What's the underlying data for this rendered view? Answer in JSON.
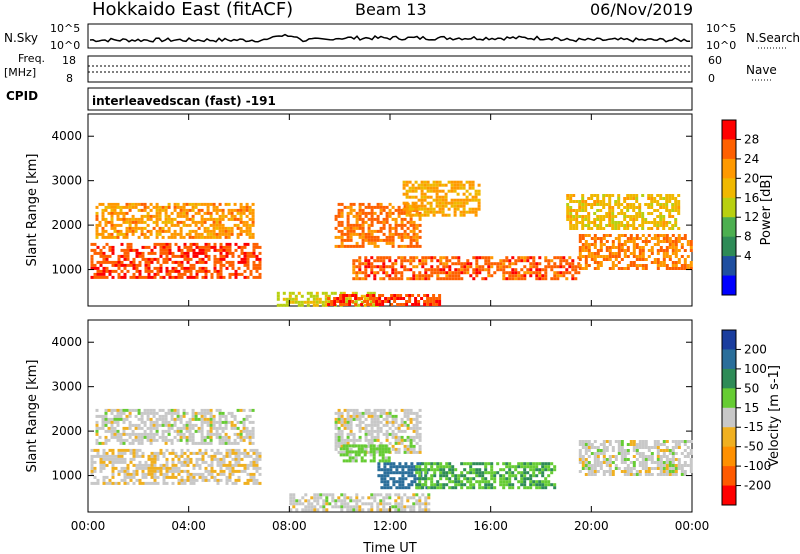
{
  "header": {
    "radar": "Hokkaido East (fitACF)",
    "beam": "Beam 13",
    "date": "06/Nov/2019"
  },
  "status_panels": {
    "nsky_label": "N.Sky",
    "nsky_ticks": [
      "10^5",
      "10^0"
    ],
    "nsearch_label": "N.Search",
    "freq_label": "Freq.",
    "freq_unit": "[MHz]",
    "freq_ticks": [
      "18",
      "8"
    ],
    "nave_label": "Nave",
    "nave_ticks": [
      "60",
      "0"
    ],
    "cpid_label": "CPID",
    "cpid_value": "interleavedscan (fast) -191"
  },
  "colorbars": {
    "power": {
      "label": "Power [dB]",
      "ticks": [
        "28",
        "24",
        "20",
        "16",
        "12",
        "8",
        "4"
      ],
      "colors": [
        "#ff0000",
        "#ff6000",
        "#ff9900",
        "#f0b800",
        "#b8d010",
        "#4caf50",
        "#2e8b57",
        "#1f4fa0",
        "#0000ff"
      ]
    },
    "velocity": {
      "label": "Velocity [m s-1]",
      "ticks": [
        "200",
        "100",
        "50",
        "15",
        "-15",
        "-50",
        "-100",
        "-200"
      ],
      "colors": [
        "#1a3d9e",
        "#2a6e9a",
        "#2e8b57",
        "#66cc33",
        "#c8c8c8",
        "#f0b020",
        "#ff9000",
        "#ff5a00",
        "#ff0000"
      ]
    }
  },
  "chart_data": [
    {
      "type": "heatmap",
      "name": "power-panel",
      "ylabel": "Slant Range [km]",
      "xlabel": "",
      "xlim": [
        "00:00",
        "24:00"
      ],
      "ylim": [
        180,
        4500
      ],
      "yticks": [
        "1000",
        "2000",
        "3000",
        "4000"
      ],
      "xticks": [
        "00:00",
        "04:00",
        "08:00",
        "12:00",
        "16:00",
        "20:00",
        "00:00"
      ],
      "regions": [
        {
          "t0": 0.1,
          "t1": 6.8,
          "r0": 850,
          "r1": 1600,
          "value": 27
        },
        {
          "t0": 0.3,
          "t1": 6.5,
          "r0": 1750,
          "r1": 2500,
          "value": 22
        },
        {
          "t0": 9.8,
          "t1": 13.2,
          "r0": 1500,
          "r1": 2500,
          "value": 25
        },
        {
          "t0": 10.5,
          "t1": 19.5,
          "r0": 800,
          "r1": 1300,
          "value": 26
        },
        {
          "t0": 12.5,
          "t1": 15.5,
          "r0": 2200,
          "r1": 3000,
          "value": 21
        },
        {
          "t0": 19.5,
          "t1": 24.0,
          "r0": 1000,
          "r1": 1800,
          "value": 24
        },
        {
          "t0": 19.0,
          "t1": 23.5,
          "r0": 1900,
          "r1": 2700,
          "value": 18
        },
        {
          "t0": 7.5,
          "t1": 11.5,
          "r0": 200,
          "r1": 500,
          "value": 15
        },
        {
          "t0": 9.5,
          "t1": 14.0,
          "r0": 200,
          "r1": 450,
          "value": 27
        }
      ]
    },
    {
      "type": "heatmap",
      "name": "velocity-panel",
      "ylabel": "Slant Range [km]",
      "xlabel": "Time UT",
      "xlim": [
        "00:00",
        "24:00"
      ],
      "ylim": [
        180,
        4500
      ],
      "yticks": [
        "1000",
        "2000",
        "3000",
        "4000"
      ],
      "xticks": [
        "00:00",
        "04:00",
        "08:00",
        "12:00",
        "16:00",
        "20:00",
        "00:00"
      ],
      "regions": [
        {
          "t0": 0.1,
          "t1": 6.8,
          "r0": 850,
          "r1": 1600,
          "value": -10
        },
        {
          "t0": 0.3,
          "t1": 6.5,
          "r0": 1750,
          "r1": 2500,
          "value": 0
        },
        {
          "t0": 9.8,
          "t1": 13.2,
          "r0": 1500,
          "r1": 2500,
          "value": 0
        },
        {
          "t0": 11.5,
          "t1": 13.5,
          "r0": 700,
          "r1": 1300,
          "value": 120
        },
        {
          "t0": 13.0,
          "t1": 18.5,
          "r0": 700,
          "r1": 1300,
          "value": 45
        },
        {
          "t0": 19.5,
          "t1": 24.0,
          "r0": 1000,
          "r1": 1800,
          "value": 0
        },
        {
          "t0": 8.0,
          "t1": 13.5,
          "r0": 200,
          "r1": 600,
          "value": 0
        },
        {
          "t0": 10.0,
          "t1": 12.0,
          "r0": 1300,
          "r1": 1700,
          "value": 30
        }
      ]
    }
  ]
}
